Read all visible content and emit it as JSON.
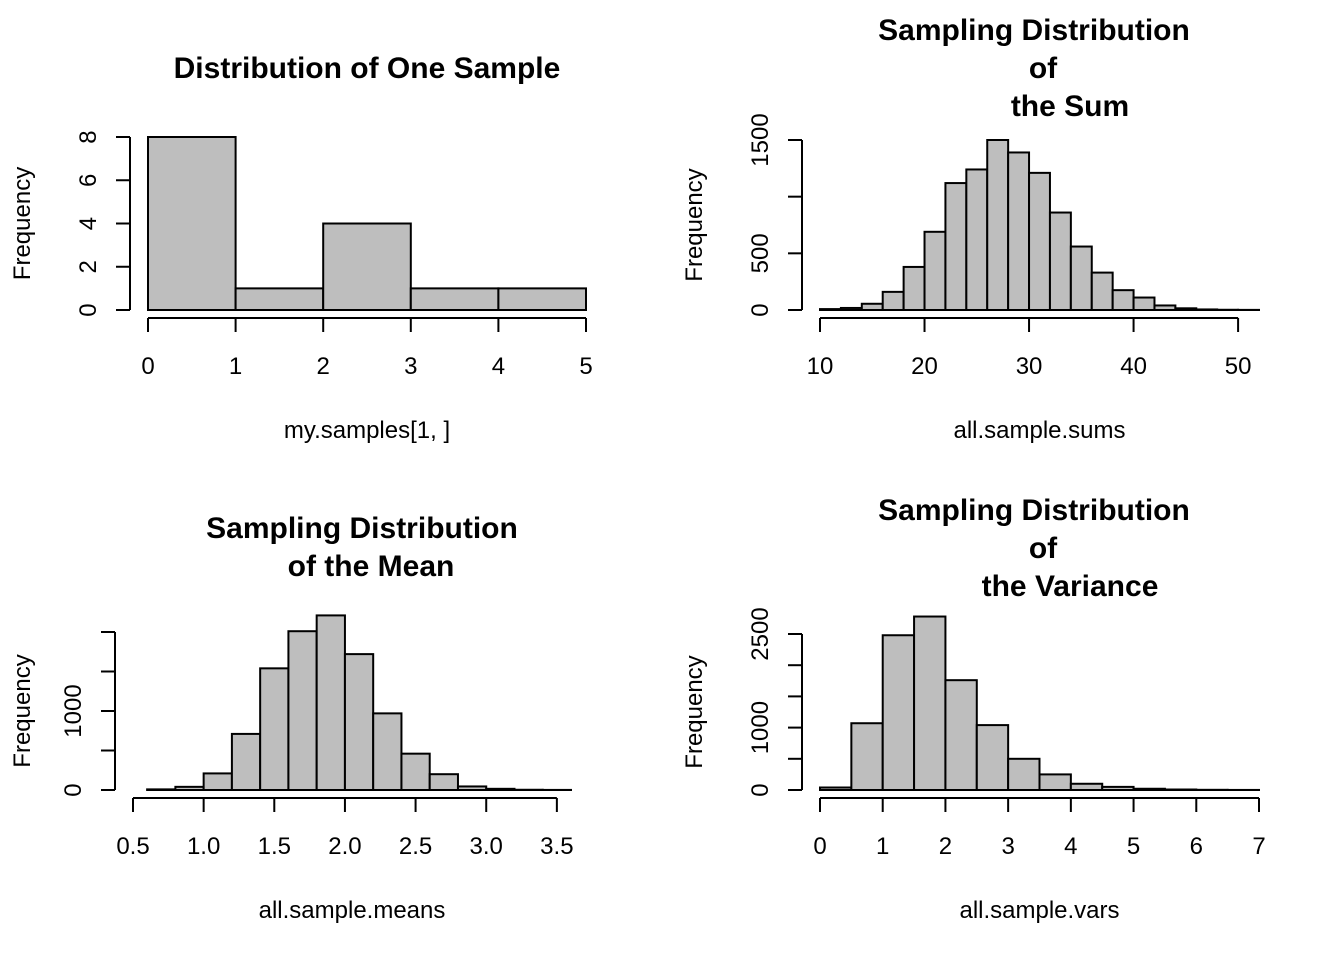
{
  "chart_data": [
    {
      "type": "bar",
      "title_lines": [
        "Distribution of One Sample"
      ],
      "xlabel": "my.samples[1, ]",
      "ylabel": "Frequency",
      "bin_edges": [
        0,
        1,
        2,
        3,
        4,
        5
      ],
      "values": [
        8,
        1,
        4,
        1,
        1
      ],
      "xlim": [
        0,
        5
      ],
      "ylim": [
        0,
        8
      ],
      "xticks": [
        0,
        1,
        2,
        3,
        4,
        5
      ],
      "xtick_labels": [
        "0",
        "1",
        "2",
        "3",
        "4",
        "5"
      ],
      "yticks": [
        0,
        2,
        4,
        6,
        8
      ],
      "ytick_labels": [
        "0",
        "2",
        "4",
        "6",
        "8"
      ],
      "grid": false
    },
    {
      "type": "bar",
      "title_lines": [
        "Sampling Distribution",
        "of",
        "the Sum"
      ],
      "xlabel": "all.sample.sums",
      "ylabel": "Frequency",
      "bin_edges": [
        10,
        12,
        14,
        16,
        18,
        20,
        22,
        24,
        26,
        28,
        30,
        32,
        34,
        36,
        38,
        40,
        42,
        44,
        46,
        48,
        50,
        52
      ],
      "values": [
        8,
        18,
        55,
        160,
        380,
        690,
        1120,
        1240,
        1500,
        1390,
        1210,
        860,
        560,
        330,
        175,
        110,
        40,
        15,
        5,
        2,
        1
      ],
      "xlim": [
        10,
        52
      ],
      "ylim": [
        0,
        1500
      ],
      "xticks": [
        10,
        20,
        30,
        40,
        50
      ],
      "xtick_labels": [
        "10",
        "20",
        "30",
        "40",
        "50"
      ],
      "yticks": [
        0,
        500,
        1000,
        1500
      ],
      "ytick_labels": [
        "0",
        "500",
        "",
        "1500"
      ],
      "grid": false
    },
    {
      "type": "bar",
      "title_lines": [
        "Sampling Distribution",
        "of the Mean"
      ],
      "xlabel": "all.sample.means",
      "ylabel": "Frequency",
      "bin_edges": [
        0.6,
        0.8,
        1.0,
        1.2,
        1.4,
        1.6,
        1.8,
        2.0,
        2.2,
        2.4,
        2.6,
        2.8,
        3.0,
        3.2,
        3.4,
        3.6
      ],
      "values": [
        8,
        40,
        210,
        710,
        1540,
        2010,
        2210,
        1720,
        970,
        460,
        200,
        45,
        15,
        3,
        1
      ],
      "xlim": [
        0.5,
        3.6
      ],
      "ylim": [
        0,
        2000
      ],
      "xticks": [
        0.5,
        1.0,
        1.5,
        2.0,
        2.5,
        3.0,
        3.5
      ],
      "xtick_labels": [
        "0.5",
        "1.0",
        "1.5",
        "2.0",
        "2.5",
        "3.0",
        "3.5"
      ],
      "yticks": [
        0,
        500,
        1000,
        1500,
        2000
      ],
      "ytick_labels": [
        "0",
        "",
        "1000",
        "",
        ""
      ],
      "grid": false
    },
    {
      "type": "bar",
      "title_lines": [
        "Sampling Distribution",
        "of",
        "the Variance"
      ],
      "xlabel": "all.sample.vars",
      "ylabel": "Frequency",
      "bin_edges": [
        0,
        0.5,
        1,
        1.5,
        2,
        2.5,
        3,
        3.5,
        4,
        4.5,
        5,
        5.5,
        6,
        6.5,
        7
      ],
      "values": [
        40,
        1070,
        2480,
        2780,
        1760,
        1040,
        500,
        250,
        100,
        50,
        20,
        8,
        3,
        1
      ],
      "xlim": [
        0,
        7
      ],
      "ylim": [
        0,
        2500
      ],
      "xticks": [
        0,
        1,
        2,
        3,
        4,
        5,
        6,
        7
      ],
      "xtick_labels": [
        "0",
        "1",
        "2",
        "3",
        "4",
        "5",
        "6",
        "7"
      ],
      "yticks": [
        0,
        500,
        1000,
        1500,
        2000,
        2500
      ],
      "ytick_labels": [
        "0",
        "",
        "1000",
        "",
        "",
        "2500"
      ],
      "grid": false
    }
  ]
}
